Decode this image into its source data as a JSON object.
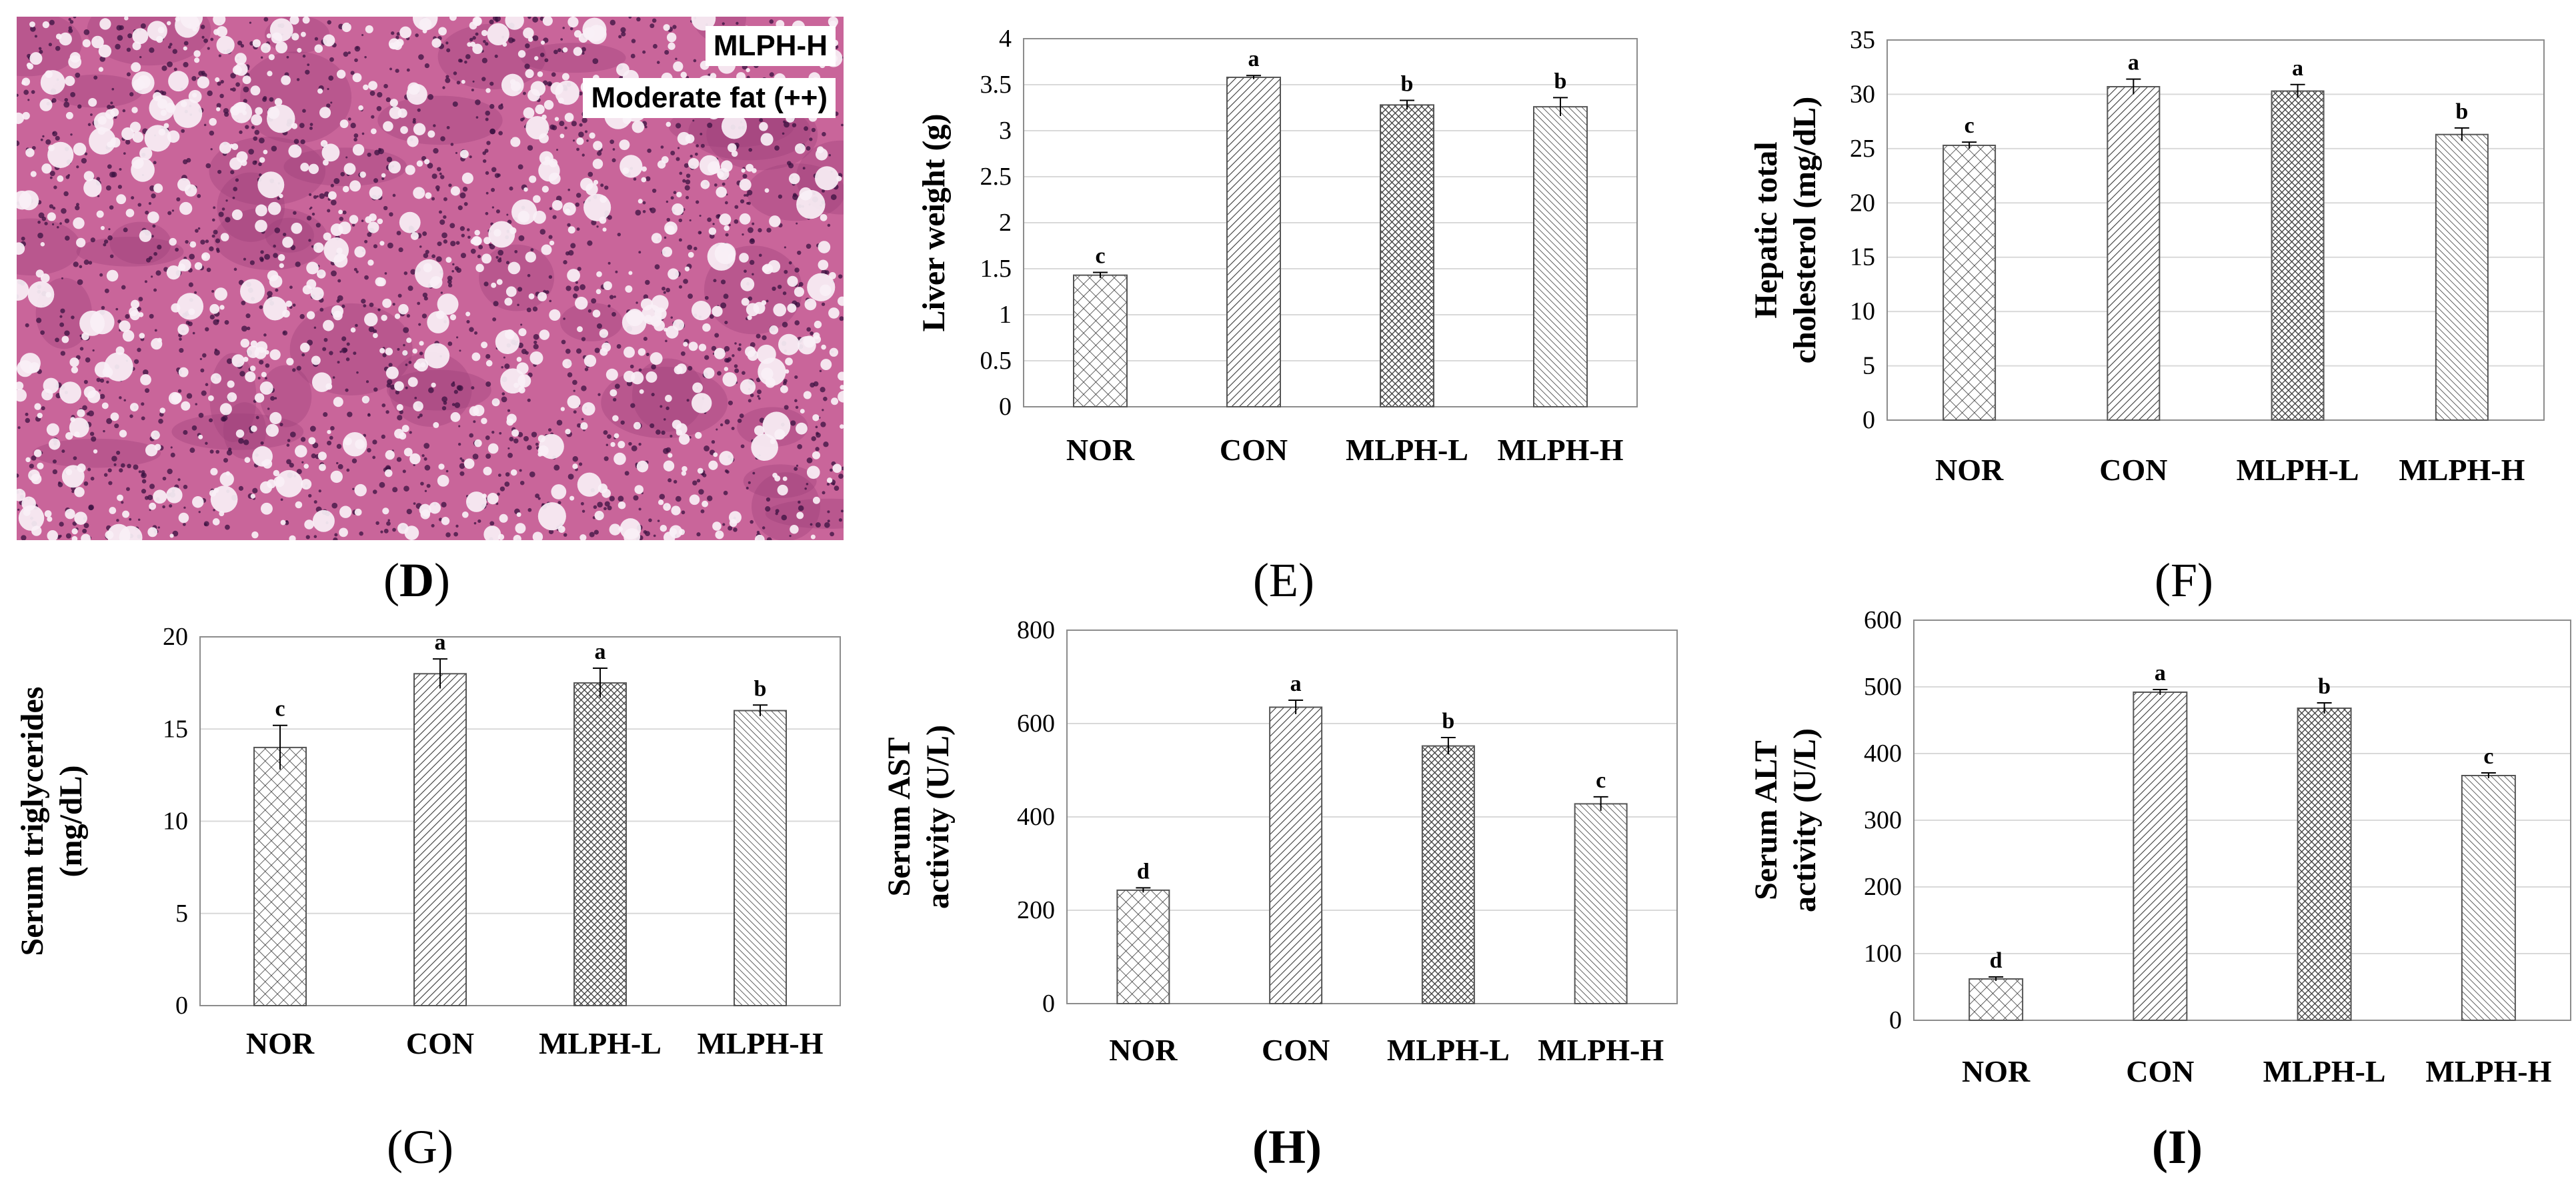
{
  "histology": {
    "group": "MLPH-H",
    "grade": "Moderate fat (++)",
    "panel": "D",
    "colors": {
      "tissue": "#c9659a",
      "dark": "#9c3f79",
      "nuclei": "#3a1240",
      "fat": "#f8f0f6"
    }
  },
  "panel_labels": {
    "D": "(D)",
    "E": "(E)",
    "F": "(F)",
    "G": "(G)",
    "H": "(H)",
    "I": "(I)"
  },
  "chart_data": [
    {
      "id": "E",
      "type": "bar",
      "title": "",
      "categories": [
        "NOR",
        "CON",
        "MLPH-L",
        "MLPH-H"
      ],
      "values": [
        1.43,
        3.58,
        3.28,
        3.26
      ],
      "errors": [
        0.03,
        0.02,
        0.05,
        0.1
      ],
      "significance": [
        "c",
        "a",
        "b",
        "b"
      ],
      "ylabel": "Liver weight (g)",
      "ylabel_lines": [
        "Liver weight (g)"
      ],
      "ylim": [
        0,
        4
      ],
      "ytick_step": 0.5,
      "yticks": [
        "0",
        "0.5",
        "1",
        "1.5",
        "2",
        "2.5",
        "3",
        "3.5",
        "4"
      ],
      "grid": true,
      "frame": "full"
    },
    {
      "id": "F",
      "type": "bar",
      "title": "",
      "categories": [
        "NOR",
        "CON",
        "MLPH-L",
        "MLPH-H"
      ],
      "values": [
        25.3,
        30.7,
        30.3,
        26.3
      ],
      "errors": [
        0.3,
        0.7,
        0.6,
        0.6
      ],
      "significance": [
        "c",
        "a",
        "a",
        "b"
      ],
      "ylabel": "Hepatic total cholesterol (mg/dL)",
      "ylabel_lines": [
        "Hepatic total",
        "cholesterol (mg/dL)"
      ],
      "ylim": [
        0,
        35
      ],
      "ytick_step": 5,
      "yticks": [
        "0",
        "5",
        "10",
        "15",
        "20",
        "25",
        "30",
        "35"
      ],
      "grid": true,
      "frame": "full"
    },
    {
      "id": "G",
      "type": "bar",
      "title": "",
      "categories": [
        "NOR",
        "CON",
        "MLPH-L",
        "MLPH-H"
      ],
      "values": [
        14.0,
        18.0,
        17.5,
        16.0
      ],
      "errors": [
        1.2,
        0.8,
        0.8,
        0.3
      ],
      "significance": [
        "c",
        "a",
        "a",
        "b"
      ],
      "ylabel": "Serum triglycerides (mg/dL)",
      "ylabel_lines": [
        "Serum triglycerides",
        "(mg/dL)"
      ],
      "ylim": [
        0,
        20
      ],
      "ytick_step": 5,
      "yticks": [
        "0",
        "5",
        "10",
        "15",
        "20"
      ],
      "grid": true,
      "frame": "full"
    },
    {
      "id": "H",
      "type": "bar",
      "title": "",
      "categories": [
        "NOR",
        "CON",
        "MLPH-L",
        "MLPH-H"
      ],
      "values": [
        243,
        635,
        552,
        428
      ],
      "errors": [
        5,
        15,
        18,
        15
      ],
      "significance": [
        "d",
        "a",
        "b",
        "c"
      ],
      "ylabel": "Serum AST activity (U/L)",
      "ylabel_lines": [
        "Serum AST",
        "activity (U/L)"
      ],
      "ylim": [
        0,
        800
      ],
      "ytick_step": 200,
      "yticks": [
        "0",
        "200",
        "400",
        "600",
        "800"
      ],
      "grid": true,
      "frame": "full"
    },
    {
      "id": "I",
      "type": "bar",
      "title": "",
      "categories": [
        "NOR",
        "CON",
        "MLPH-L",
        "MLPH-H"
      ],
      "values": [
        62,
        492,
        468,
        367
      ],
      "errors": [
        3,
        4,
        8,
        4
      ],
      "significance": [
        "d",
        "a",
        "b",
        "c"
      ],
      "ylabel": "Serum ALT activity (U/L)",
      "ylabel_lines": [
        "Serum ALT",
        "activity (U/L)"
      ],
      "ylim": [
        0,
        600
      ],
      "ytick_step": 100,
      "yticks": [
        "0",
        "100",
        "200",
        "300",
        "400",
        "500",
        "600"
      ],
      "grid": true,
      "frame": "full"
    }
  ]
}
